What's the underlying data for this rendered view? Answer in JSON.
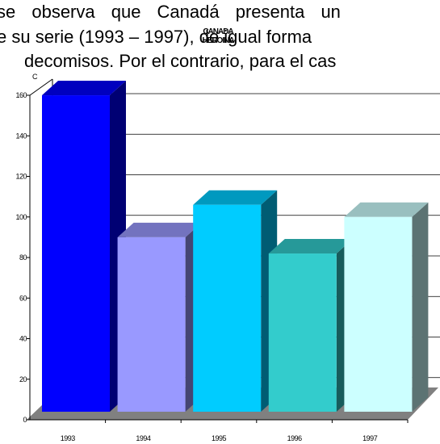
{
  "text_lines": [
    "se observa que Canadá presenta un",
    "e su serie (1993 – 1997), de igual forma",
    "decomisos. Por el contrario, para el cas"
  ],
  "chart_data": {
    "type": "bar3d",
    "title": "CANADA",
    "subtitle": "HEROINA",
    "ylabel": "C",
    "categories": [
      "1993",
      "1994",
      "1995",
      "1996",
      "1997"
    ],
    "values": [
      156,
      86,
      102,
      78,
      96
    ],
    "colors": [
      "#0000ff",
      "#9999ff",
      "#00ccff",
      "#33cccc",
      "#ccffff"
    ],
    "ylim": [
      0,
      160
    ],
    "yticks": [
      0,
      20,
      40,
      60,
      80,
      100,
      120,
      140,
      160
    ],
    "grid": true
  }
}
